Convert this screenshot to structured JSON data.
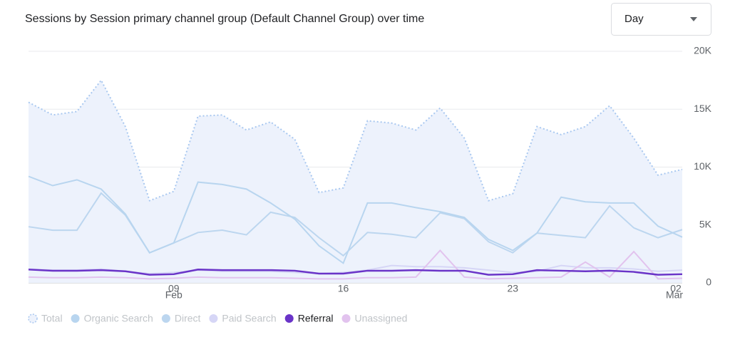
{
  "chart_data": {
    "type": "line",
    "title": "Sessions by Session primary channel group (Default Channel Group) over time",
    "categories": [
      null,
      null,
      null,
      null,
      null,
      null,
      "09",
      null,
      null,
      null,
      null,
      null,
      null,
      "16",
      null,
      null,
      null,
      null,
      null,
      null,
      "23",
      null,
      null,
      null,
      null,
      null,
      null,
      "02"
    ],
    "month_labels": [
      null,
      null,
      null,
      null,
      null,
      null,
      "Feb",
      null,
      null,
      null,
      null,
      null,
      null,
      null,
      null,
      null,
      null,
      null,
      null,
      null,
      null,
      null,
      null,
      null,
      null,
      null,
      null,
      "Mar"
    ],
    "ylim": [
      0,
      20000
    ],
    "yticks": [
      0,
      {
        "value": 5000,
        "label": "5K"
      },
      {
        "value": 10000,
        "label": "10K"
      },
      {
        "value": 15000,
        "label": "15K"
      },
      {
        "value": 20000,
        "label": "20K"
      }
    ],
    "grid": true,
    "highlight": 4,
    "series": [
      {
        "name": "Total",
        "color": "#a9c8f0",
        "style": "dotted-area",
        "fill": "#edf2fc",
        "values": [
          15600,
          14500,
          14800,
          17500,
          13500,
          7100,
          7900,
          14400,
          14500,
          13200,
          13900,
          12400,
          7800,
          8200,
          14000,
          13800,
          13200,
          15100,
          12500,
          7100,
          7700,
          13500,
          12800,
          13500,
          15300,
          12500,
          9300,
          9800
        ]
      },
      {
        "name": "Organic Search",
        "color": "#b8d5ef",
        "style": "solid",
        "values": [
          9200,
          8400,
          8900,
          8100,
          5950,
          2600,
          3450,
          8700,
          8500,
          8100,
          6900,
          5500,
          3200,
          1700,
          6900,
          6900,
          6500,
          6150,
          5650,
          3750,
          2800,
          4300,
          7400,
          7000,
          6900,
          6900,
          4900,
          3950
        ]
      },
      {
        "name": "Direct",
        "color": "#bcd6ef",
        "style": "solid",
        "values": [
          4850,
          4550,
          4550,
          7750,
          5850,
          2600,
          3450,
          4350,
          4550,
          4150,
          6100,
          5650,
          3900,
          2350,
          4350,
          4200,
          3900,
          6050,
          5550,
          3550,
          2600,
          4300,
          4100,
          3900,
          6650,
          4750,
          3900,
          4600
        ]
      },
      {
        "name": "Paid Search",
        "color": "#d6d6f6",
        "style": "solid",
        "values": [
          1200,
          1100,
          1100,
          1200,
          1000,
          800,
          900,
          1100,
          1000,
          1000,
          1000,
          900,
          800,
          900,
          1100,
          1500,
          1400,
          1400,
          1300,
          1100,
          900,
          1000,
          1500,
          1300,
          1300,
          1200,
          1000,
          1100
        ]
      },
      {
        "name": "Referral",
        "color": "#6a34c8",
        "style": "bold",
        "values": [
          1150,
          1050,
          1050,
          1100,
          1000,
          700,
          750,
          1150,
          1100,
          1100,
          1100,
          1050,
          800,
          800,
          1050,
          1050,
          1100,
          1050,
          1050,
          700,
          750,
          1100,
          1050,
          1000,
          1050,
          950,
          700,
          750
        ]
      },
      {
        "name": "Unassigned",
        "color": "#e2c3ee",
        "style": "solid",
        "values": [
          500,
          450,
          450,
          500,
          450,
          350,
          400,
          500,
          450,
          450,
          450,
          400,
          350,
          350,
          450,
          450,
          500,
          2800,
          500,
          350,
          400,
          450,
          500,
          1800,
          500,
          2700,
          350,
          400
        ]
      }
    ]
  },
  "controls": {
    "dropdown": "Day"
  }
}
